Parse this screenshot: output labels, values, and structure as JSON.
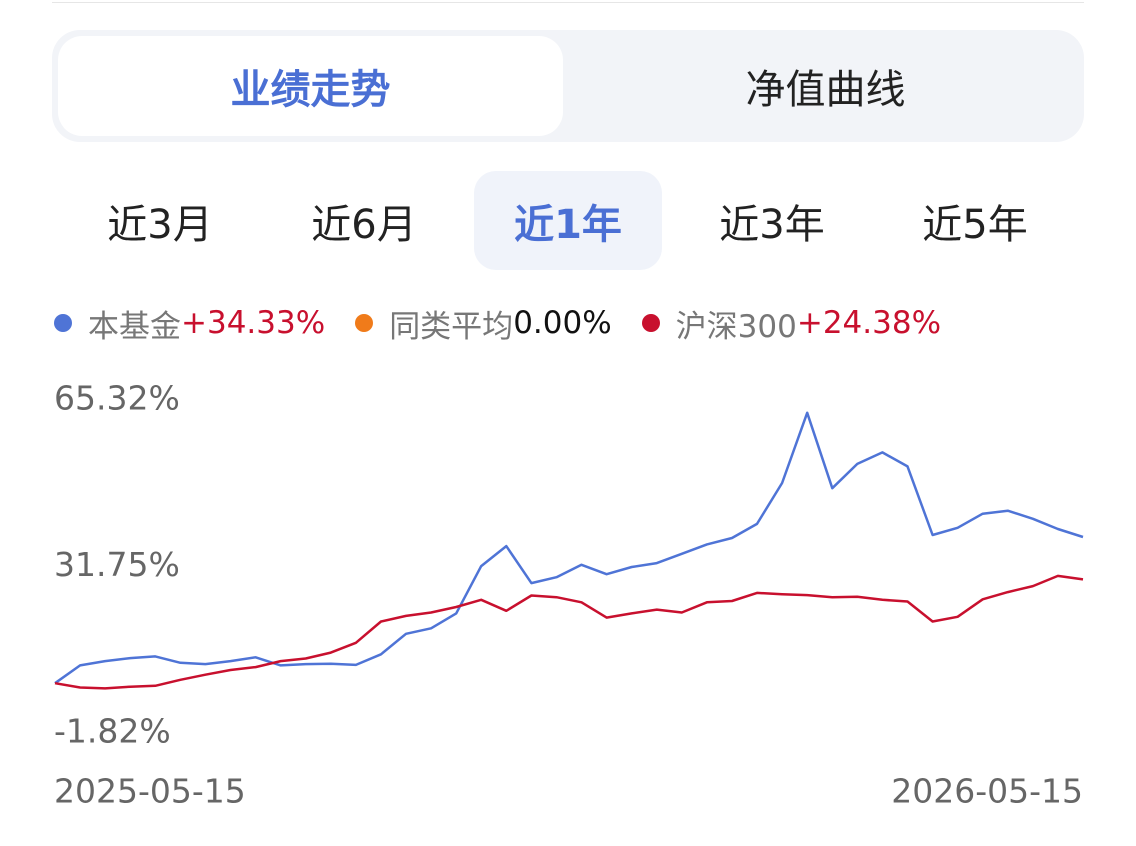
{
  "tabs": [
    "业绩走势",
    "净值曲线"
  ],
  "periods": [
    "近3月",
    "近6月",
    "近1年",
    "近3年",
    "近5年"
  ],
  "chart_data": {
    "type": "line",
    "categories": [
      "2025-05-15",
      null,
      null,
      null,
      null,
      null,
      null,
      null,
      null,
      null,
      null,
      null,
      null,
      null,
      null,
      null,
      null,
      null,
      null,
      null,
      null,
      null,
      null,
      null,
      null,
      null,
      null,
      null,
      null,
      null,
      null,
      null,
      null,
      null,
      null,
      null,
      null,
      null,
      null,
      null,
      null,
      "2026-05-15"
    ],
    "series": [
      {
        "name": "本基金",
        "color": "#4f74d6",
        "legend_value": "+34.33%",
        "legend_value_color": "#c8102e",
        "values": [
          0,
          4.2,
          5.2,
          5.9,
          6.3,
          4.8,
          4.5,
          5.2,
          6.1,
          4.2,
          4.5,
          4.6,
          4.3,
          6.8,
          11.6,
          12.9,
          16.4,
          27.5,
          32.2,
          23.5,
          24.9,
          27.8,
          25.6,
          27.3,
          28.2,
          30.4,
          32.6,
          34.1,
          37.4,
          47,
          63.5,
          45.8,
          51.5,
          54.2,
          50.9,
          34.8,
          36.5,
          39.8,
          40.5,
          38.6,
          36.2,
          34.33
        ]
      },
      {
        "name": "同类平均",
        "color": "#f07b1a",
        "legend_value": "0.00%",
        "legend_value_color": "#111111"
      },
      {
        "name": "沪深300",
        "color": "#c8102e",
        "legend_value": "+24.38%",
        "legend_value_color": "#c8102e",
        "values": [
          0,
          -1.0,
          -1.2,
          -0.8,
          -0.6,
          0.8,
          2.0,
          3.1,
          3.8,
          5.2,
          5.8,
          7.2,
          9.5,
          14.5,
          15.8,
          16.6,
          17.9,
          19.6,
          17.0,
          20.6,
          20.2,
          19.0,
          15.4,
          16.4,
          17.3,
          16.6,
          19.0,
          19.3,
          21.2,
          20.9,
          20.7,
          20.2,
          20.3,
          19.6,
          19.2,
          14.5,
          15.6,
          19.7,
          21.4,
          22.8,
          25.2,
          24.38
        ]
      }
    ],
    "ylim": [
      -1.82,
      65.32
    ],
    "yticks": [
      {
        "value": -1.82,
        "label": "-1.82%"
      },
      {
        "value": 31.75,
        "label": "31.75%"
      },
      {
        "value": 65.32,
        "label": "65.32%"
      }
    ],
    "grid": false
  }
}
